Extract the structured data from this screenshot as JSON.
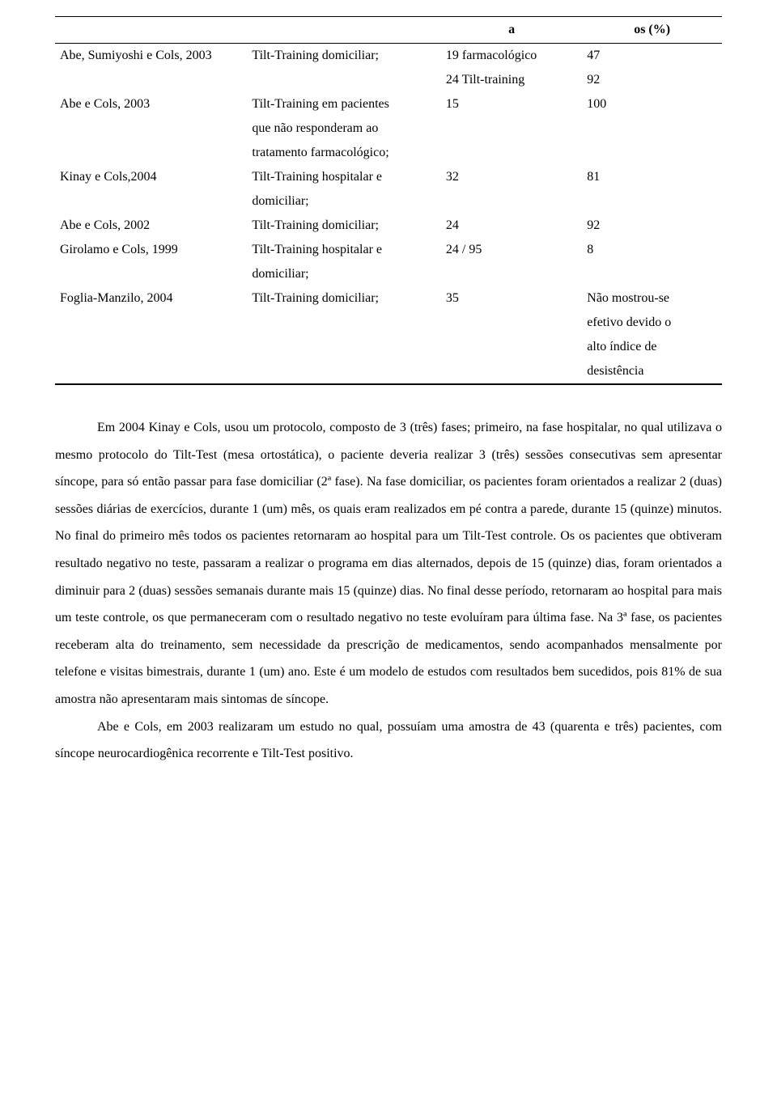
{
  "table": {
    "headers": {
      "col_a": "a",
      "col_os": "os (%)"
    },
    "rows": [
      {
        "author": "Abe, Sumiyoshi e Cols, 2003",
        "method": "Tilt-Training domiciliar;",
        "a": "19 farmacológico",
        "os": "47"
      },
      {
        "author": "",
        "method": "",
        "a": "24 Tilt-training",
        "os": "92"
      },
      {
        "author": "Abe e Cols, 2003",
        "method": "Tilt-Training em pacientes",
        "a": "15",
        "os": "100"
      },
      {
        "author": "",
        "method": "que não responderam ao",
        "a": "",
        "os": ""
      },
      {
        "author": "",
        "method": "tratamento farmacológico;",
        "a": "",
        "os": ""
      },
      {
        "author": "Kinay e Cols,2004",
        "method": "Tilt-Training hospitalar e",
        "a": "32",
        "os": "81"
      },
      {
        "author": "",
        "method": "domiciliar;",
        "a": "",
        "os": ""
      },
      {
        "author": "Abe e Cols, 2002",
        "method": "Tilt-Training domiciliar;",
        "a": "24",
        "os": "92"
      },
      {
        "author": "Girolamo e Cols, 1999",
        "method": "Tilt-Training hospitalar e",
        "a": "24 / 95",
        "os": "8"
      },
      {
        "author": "",
        "method": "domiciliar;",
        "a": "",
        "os": ""
      },
      {
        "author": "Foglia-Manzilo, 2004",
        "method": "Tilt-Training domiciliar;",
        "a": "35",
        "os": "Não mostrou-se"
      },
      {
        "author": "",
        "method": "",
        "a": "",
        "os": "efetivo devido o"
      },
      {
        "author": "",
        "method": "",
        "a": "",
        "os": "alto índice de"
      },
      {
        "author": "",
        "method": "",
        "a": "",
        "os": "desistência"
      }
    ]
  },
  "paragraphs": {
    "p1": "Em 2004 Kinay e Cols, usou um protocolo, composto de 3 (três) fases; primeiro, na fase hospitalar, no qual utilizava o mesmo protocolo do Tilt-Test (mesa ortostática), o paciente deveria realizar 3 (três) sessões consecutivas sem apresentar síncope, para só então passar para fase domiciliar (2ª fase). Na fase domiciliar, os pacientes foram orientados a realizar 2 (duas) sessões diárias de exercícios, durante 1 (um) mês, os quais eram realizados em pé contra a parede, durante 15 (quinze) minutos. No final do primeiro mês todos os pacientes retornaram ao hospital para um Tilt-Test controle. Os os pacientes que obtiveram resultado negativo no teste, passaram a realizar o programa em dias alternados, depois de 15 (quinze) dias, foram orientados a diminuir para 2 (duas) sessões semanais durante mais 15 (quinze) dias. No final desse período, retornaram ao hospital para mais um teste controle, os que permaneceram com o resultado negativo no teste evoluíram para última fase. Na 3ª fase, os pacientes receberam alta do treinamento, sem necessidade da prescrição de medicamentos, sendo acompanhados mensalmente por telefone e visitas bimestrais, durante 1 (um) ano. Este é um modelo de estudos com resultados bem sucedidos, pois 81% de sua amostra não apresentaram mais sintomas de síncope.",
    "p2": "Abe e Cols, em 2003 realizaram um estudo no qual, possuíam uma amostra de 43 (quarenta e três) pacientes, com síncope neurocardiogênica recorrente e Tilt-Test positivo."
  }
}
